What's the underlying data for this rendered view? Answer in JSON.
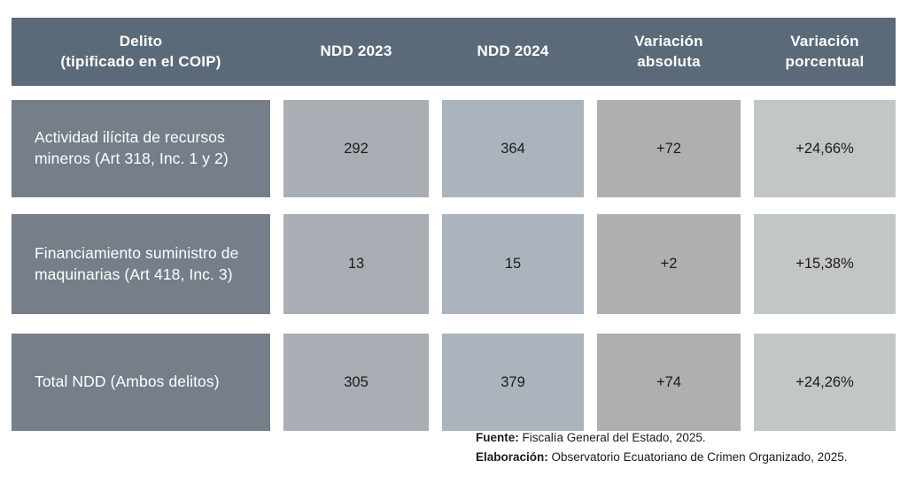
{
  "colors": {
    "header_bg": "#5b6a78",
    "row_label_bg": "#757e89",
    "ndd_2023_cell_bg": "#a8aeb3",
    "ndd_2024_cell_bg": "#abb4bc",
    "variacion_absoluta_cell_bg": "#aeb0ad",
    "variacion_porcentual_cell_bg": "#c3c7c4",
    "header_text": "#ffffff",
    "value_text": "#1b1b1b"
  },
  "header": {
    "delito_line1": "Delito",
    "delito_line2": "(tipificado en el COIP)",
    "ndd_2023": "NDD 2023",
    "ndd_2024": "NDD 2024",
    "var_abs_line1": "Variación",
    "var_abs_line2": "absoluta",
    "var_pct_line1": "Variación",
    "var_pct_line2": "porcentual"
  },
  "rows": [
    {
      "delito": "Actividad ilícita de recursos mineros (Art 318, Inc. 1 y 2)",
      "ndd_2023": "292",
      "ndd_2024": "364",
      "variacion_absoluta": "+72",
      "variacion_porcentual": "+24,66%"
    },
    {
      "delito": "Financiamiento suministro de maquinarias (Art 418, Inc. 3)",
      "ndd_2023": "13",
      "ndd_2024": "15",
      "variacion_absoluta": "+2",
      "variacion_porcentual": "+15,38%"
    },
    {
      "delito": "Total NDD (Ambos delitos)",
      "ndd_2023": "305",
      "ndd_2024": "379",
      "variacion_absoluta": "+74",
      "variacion_porcentual": "+24,26%"
    }
  ],
  "footer": {
    "fuente_label": "Fuente:",
    "fuente_text": "Fiscalía General del Estado, 2025.",
    "elaboracion_label": "Elaboración:",
    "elaboracion_text": "Observatorio Ecuatoriano de Crimen Organizado, 2025."
  },
  "chart_data": {
    "type": "table",
    "columns": [
      "Delito (tipificado en el COIP)",
      "NDD 2023",
      "NDD 2024",
      "Variación absoluta",
      "Variación porcentual"
    ],
    "rows": [
      [
        "Actividad ilícita de recursos mineros (Art 318, Inc. 1 y 2)",
        292,
        364,
        "+72",
        "+24,66%"
      ],
      [
        "Financiamiento suministro de maquinarias (Art 418, Inc. 3)",
        13,
        15,
        "+2",
        "+15,38%"
      ],
      [
        "Total NDD (Ambos delitos)",
        305,
        379,
        "+74",
        "+24,26%"
      ]
    ],
    "notes": [
      "Fuente: Fiscalía General del Estado, 2025.",
      "Elaboración: Observatorio Ecuatoriano de Crimen Organizado, 2025."
    ]
  }
}
